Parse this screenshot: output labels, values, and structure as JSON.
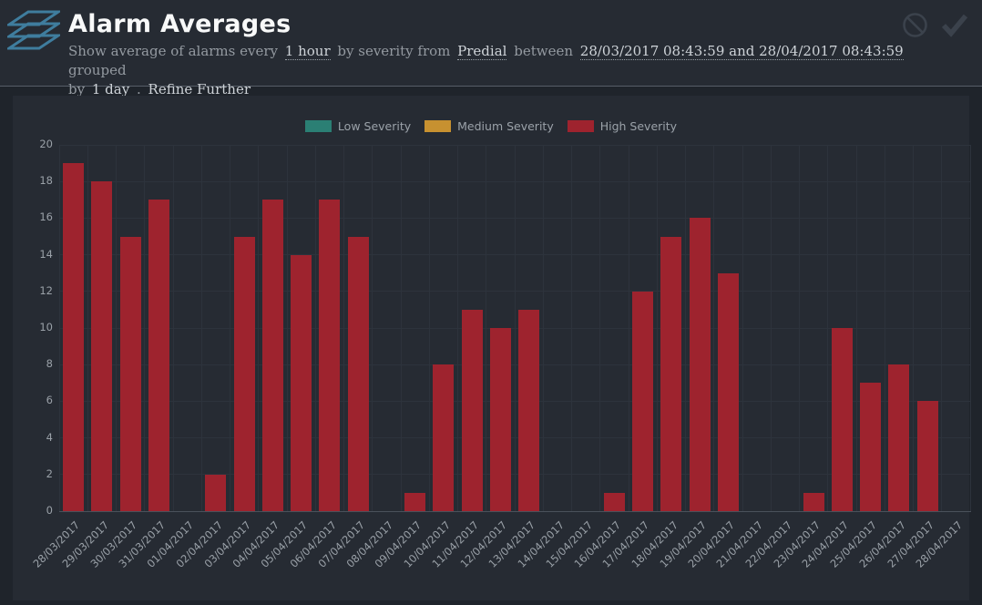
{
  "header": {
    "title": "Alarm Averages",
    "subtitle": {
      "part1": "Show average of alarms every",
      "interval": "1 hour",
      "part2": "by severity from",
      "source": "Predial",
      "part3": "between",
      "range": "28/03/2017 08:43:59 and 28/04/2017 08:43:59",
      "part4a": "grouped",
      "part4b": "by",
      "group": "1 day",
      "part5": ".",
      "refine_label": "Refine Further"
    }
  },
  "colors": {
    "logo_blue": "#3f7d9e",
    "icon_gray": "#3b424c",
    "low_severity": "#2b7f74",
    "medium_severity": "#c79130",
    "high_severity": "#9e232e"
  },
  "chart_data": {
    "type": "bar",
    "title": "",
    "xlabel": "",
    "ylabel": "",
    "ylim": [
      0,
      20
    ],
    "ytick_step": 2,
    "grid": true,
    "legend_position": "top",
    "categories": [
      "28/03/2017",
      "29/03/2017",
      "30/03/2017",
      "31/03/2017",
      "01/04/2017",
      "02/04/2017",
      "03/04/2017",
      "04/04/2017",
      "05/04/2017",
      "06/04/2017",
      "07/04/2017",
      "08/04/2017",
      "09/04/2017",
      "10/04/2017",
      "11/04/2017",
      "12/04/2017",
      "13/04/2017",
      "14/04/2017",
      "15/04/2017",
      "16/04/2017",
      "17/04/2017",
      "18/04/2017",
      "19/04/2017",
      "20/04/2017",
      "21/04/2017",
      "22/04/2017",
      "23/04/2017",
      "24/04/2017",
      "25/04/2017",
      "26/04/2017",
      "27/04/2017",
      "28/04/2017"
    ],
    "series": [
      {
        "name": "Low Severity",
        "color": "#2b7f74",
        "values": [
          0,
          0,
          0,
          0,
          0,
          0,
          0,
          0,
          0,
          0,
          0,
          0,
          0,
          0,
          0,
          0,
          0,
          0,
          0,
          0,
          0,
          0,
          0,
          0,
          0,
          0,
          0,
          0,
          0,
          0,
          0,
          0
        ]
      },
      {
        "name": "Medium Severity",
        "color": "#c79130",
        "values": [
          0,
          0,
          0,
          0,
          0,
          0,
          0,
          0,
          0,
          0,
          0,
          0,
          0,
          0,
          0,
          0,
          0,
          0,
          0,
          0,
          0,
          0,
          0,
          0,
          0,
          0,
          0,
          0,
          0,
          0,
          0,
          0
        ]
      },
      {
        "name": "High Severity",
        "color": "#9e232e",
        "values": [
          19,
          18,
          15,
          17,
          0,
          2,
          15,
          17,
          14,
          17,
          15,
          0,
          1,
          8,
          11,
          10,
          11,
          0,
          0,
          1,
          12,
          15,
          16,
          13,
          0,
          0,
          1,
          10,
          7,
          8,
          6,
          0
        ]
      }
    ]
  }
}
